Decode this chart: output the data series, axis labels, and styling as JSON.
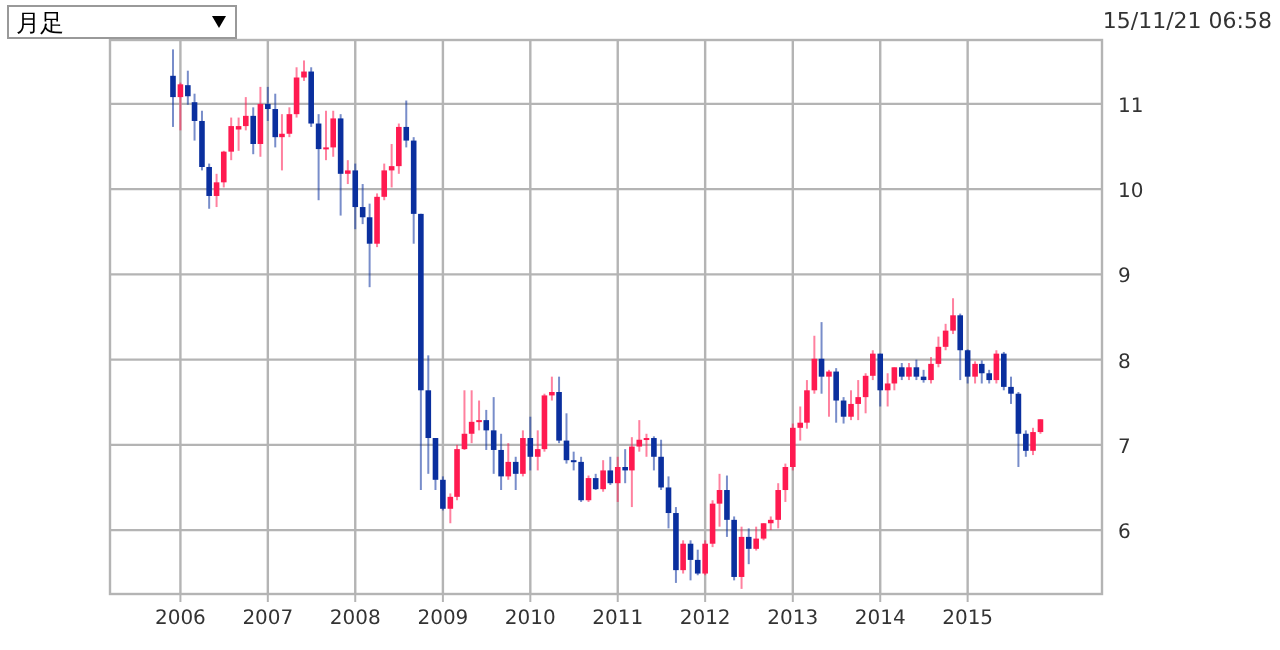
{
  "chart_data": {
    "type": "candlestick",
    "x": [
      "2005-12",
      "2006-01",
      "2006-02",
      "2006-03",
      "2006-04",
      "2006-05",
      "2006-06",
      "2006-07",
      "2006-08",
      "2006-09",
      "2006-10",
      "2006-11",
      "2006-12",
      "2007-01",
      "2007-02",
      "2007-03",
      "2007-04",
      "2007-05",
      "2007-06",
      "2007-07",
      "2007-08",
      "2007-09",
      "2007-10",
      "2007-11",
      "2007-12",
      "2008-01",
      "2008-02",
      "2008-03",
      "2008-04",
      "2008-05",
      "2008-06",
      "2008-07",
      "2008-08",
      "2008-09",
      "2008-10",
      "2008-11",
      "2008-12",
      "2009-01",
      "2009-02",
      "2009-03",
      "2009-04",
      "2009-05",
      "2009-06",
      "2009-07",
      "2009-08",
      "2009-09",
      "2009-10",
      "2009-11",
      "2009-12",
      "2010-01",
      "2010-02",
      "2010-03",
      "2010-04",
      "2010-05",
      "2010-06",
      "2010-07",
      "2010-08",
      "2010-09",
      "2010-10",
      "2010-11",
      "2010-12",
      "2011-01",
      "2011-02",
      "2011-03",
      "2011-04",
      "2011-05",
      "2011-06",
      "2011-07",
      "2011-08",
      "2011-09",
      "2011-10",
      "2011-11",
      "2011-12",
      "2012-01",
      "2012-02",
      "2012-03",
      "2012-04",
      "2012-05",
      "2012-06",
      "2012-07",
      "2012-08",
      "2012-09",
      "2012-10",
      "2012-11",
      "2012-12",
      "2013-01",
      "2013-02",
      "2013-03",
      "2013-04",
      "2013-05",
      "2013-06",
      "2013-07",
      "2013-08",
      "2013-09",
      "2013-10",
      "2013-11",
      "2013-12",
      "2014-01",
      "2014-02",
      "2014-03",
      "2014-04",
      "2014-05",
      "2014-06",
      "2014-07",
      "2014-08",
      "2014-09",
      "2014-10",
      "2014-11",
      "2014-12",
      "2015-01",
      "2015-02",
      "2015-03",
      "2015-04",
      "2015-05",
      "2015-06",
      "2015-07",
      "2015-08",
      "2015-09",
      "2015-10",
      "2015-11"
    ],
    "ohlc": [
      [
        11.33,
        11.64,
        10.73,
        11.08
      ],
      [
        11.08,
        11.25,
        10.69,
        11.23
      ],
      [
        11.22,
        11.39,
        10.99,
        11.09
      ],
      [
        11.02,
        11.12,
        10.57,
        10.8
      ],
      [
        10.8,
        10.92,
        10.22,
        10.26
      ],
      [
        10.26,
        10.3,
        9.77,
        9.92
      ],
      [
        9.92,
        10.18,
        9.79,
        10.08
      ],
      [
        10.08,
        10.45,
        10.02,
        10.44
      ],
      [
        10.44,
        10.84,
        10.34,
        10.74
      ],
      [
        10.7,
        10.84,
        10.45,
        10.74
      ],
      [
        10.74,
        11.08,
        10.69,
        10.86
      ],
      [
        10.86,
        10.96,
        10.41,
        10.53
      ],
      [
        10.53,
        11.2,
        10.38,
        11.0
      ],
      [
        11.0,
        11.2,
        10.8,
        10.94
      ],
      [
        10.94,
        11.12,
        10.49,
        10.61
      ],
      [
        10.61,
        10.88,
        10.22,
        10.65
      ],
      [
        10.65,
        10.96,
        10.61,
        10.88
      ],
      [
        10.88,
        11.43,
        10.84,
        11.31
      ],
      [
        11.31,
        11.51,
        11.27,
        11.38
      ],
      [
        11.38,
        11.43,
        10.73,
        10.77
      ],
      [
        10.77,
        10.88,
        9.87,
        10.47
      ],
      [
        10.47,
        10.92,
        10.34,
        10.49
      ],
      [
        10.49,
        10.92,
        10.38,
        10.83
      ],
      [
        10.83,
        10.88,
        9.69,
        10.18
      ],
      [
        10.18,
        10.34,
        10.06,
        10.22
      ],
      [
        10.22,
        10.3,
        9.53,
        9.79
      ],
      [
        9.79,
        10.06,
        9.59,
        9.67
      ],
      [
        9.67,
        9.83,
        8.85,
        9.36
      ],
      [
        9.36,
        9.95,
        9.32,
        9.91
      ],
      [
        9.91,
        10.3,
        9.87,
        10.22
      ],
      [
        10.22,
        10.53,
        10.02,
        10.27
      ],
      [
        10.27,
        10.77,
        10.18,
        10.73
      ],
      [
        10.73,
        11.04,
        10.49,
        10.57
      ],
      [
        10.57,
        10.61,
        9.36,
        9.71
      ],
      [
        9.71,
        9.71,
        6.47,
        7.64
      ],
      [
        7.64,
        8.05,
        6.66,
        7.08
      ],
      [
        7.08,
        7.08,
        6.47,
        6.59
      ],
      [
        6.59,
        6.63,
        6.23,
        6.25
      ],
      [
        6.25,
        6.43,
        6.08,
        6.39
      ],
      [
        6.39,
        7.0,
        6.35,
        6.95
      ],
      [
        6.95,
        7.64,
        6.94,
        7.13
      ],
      [
        7.13,
        7.64,
        7.02,
        7.27
      ],
      [
        7.27,
        7.52,
        7.17,
        7.29
      ],
      [
        7.29,
        7.41,
        6.94,
        7.17
      ],
      [
        7.17,
        7.56,
        6.66,
        6.94
      ],
      [
        6.94,
        7.13,
        6.47,
        6.63
      ],
      [
        6.63,
        7.02,
        6.59,
        6.8
      ],
      [
        6.8,
        6.86,
        6.47,
        6.66
      ],
      [
        6.66,
        7.17,
        6.63,
        7.08
      ],
      [
        7.08,
        7.33,
        6.7,
        6.86
      ],
      [
        6.86,
        7.17,
        6.7,
        6.95
      ],
      [
        6.95,
        7.6,
        6.92,
        7.58
      ],
      [
        7.58,
        7.8,
        7.52,
        7.62
      ],
      [
        7.62,
        7.8,
        7.02,
        7.05
      ],
      [
        7.05,
        7.37,
        6.78,
        6.82
      ],
      [
        6.82,
        6.92,
        6.7,
        6.8
      ],
      [
        6.8,
        6.86,
        6.33,
        6.35
      ],
      [
        6.35,
        6.64,
        6.33,
        6.61
      ],
      [
        6.61,
        6.66,
        6.47,
        6.48
      ],
      [
        6.48,
        6.82,
        6.45,
        6.7
      ],
      [
        6.7,
        6.86,
        6.53,
        6.55
      ],
      [
        6.55,
        6.86,
        6.33,
        6.74
      ],
      [
        6.74,
        6.95,
        6.55,
        6.7
      ],
      [
        6.7,
        7.09,
        6.27,
        6.98
      ],
      [
        6.98,
        7.29,
        6.92,
        7.06
      ],
      [
        7.06,
        7.13,
        6.86,
        7.08
      ],
      [
        7.08,
        7.1,
        6.7,
        6.86
      ],
      [
        6.86,
        7.06,
        6.47,
        6.5
      ],
      [
        6.5,
        6.63,
        6.02,
        6.2
      ],
      [
        6.2,
        6.27,
        5.38,
        5.53
      ],
      [
        5.53,
        5.88,
        5.49,
        5.84
      ],
      [
        5.84,
        5.88,
        5.41,
        5.65
      ],
      [
        5.65,
        5.77,
        5.47,
        5.49
      ],
      [
        5.49,
        5.88,
        5.47,
        5.84
      ],
      [
        5.84,
        6.35,
        5.8,
        6.31
      ],
      [
        6.31,
        6.66,
        6.04,
        6.47
      ],
      [
        6.47,
        6.64,
        5.92,
        6.12
      ],
      [
        6.12,
        6.16,
        5.41,
        5.45
      ],
      [
        5.45,
        6.04,
        5.31,
        5.92
      ],
      [
        5.92,
        6.02,
        5.6,
        5.78
      ],
      [
        5.78,
        6.04,
        5.76,
        5.9
      ],
      [
        5.9,
        6.08,
        5.88,
        6.08
      ],
      [
        6.08,
        6.16,
        6.0,
        6.12
      ],
      [
        6.12,
        6.55,
        6.02,
        6.47
      ],
      [
        6.47,
        6.78,
        6.33,
        6.74
      ],
      [
        6.74,
        7.25,
        6.7,
        7.2
      ],
      [
        7.2,
        7.45,
        7.05,
        7.26
      ],
      [
        7.26,
        7.76,
        7.19,
        7.64
      ],
      [
        7.64,
        8.28,
        7.6,
        8.01
      ],
      [
        8.01,
        8.44,
        7.6,
        7.8
      ],
      [
        7.8,
        7.88,
        7.33,
        7.86
      ],
      [
        7.86,
        7.9,
        7.26,
        7.52
      ],
      [
        7.52,
        7.56,
        7.25,
        7.33
      ],
      [
        7.33,
        7.64,
        7.29,
        7.48
      ],
      [
        7.48,
        7.76,
        7.29,
        7.56
      ],
      [
        7.56,
        7.84,
        7.37,
        7.81
      ],
      [
        7.81,
        8.11,
        7.76,
        8.07
      ],
      [
        8.07,
        8.07,
        7.45,
        7.64
      ],
      [
        7.64,
        7.84,
        7.45,
        7.72
      ],
      [
        7.72,
        7.91,
        7.64,
        7.91
      ],
      [
        7.91,
        7.96,
        7.76,
        7.8
      ],
      [
        7.8,
        7.96,
        7.76,
        7.91
      ],
      [
        7.91,
        8.0,
        7.76,
        7.8
      ],
      [
        7.8,
        7.88,
        7.73,
        7.76
      ],
      [
        7.76,
        8.03,
        7.72,
        7.95
      ],
      [
        7.95,
        8.27,
        7.91,
        8.15
      ],
      [
        8.15,
        8.42,
        8.11,
        8.34
      ],
      [
        8.34,
        8.72,
        8.3,
        8.52
      ],
      [
        8.52,
        8.54,
        7.76,
        8.11
      ],
      [
        8.11,
        8.12,
        7.72,
        7.8
      ],
      [
        7.8,
        7.98,
        7.72,
        7.95
      ],
      [
        7.95,
        7.99,
        7.72,
        7.84
      ],
      [
        7.84,
        7.88,
        7.72,
        7.76
      ],
      [
        7.76,
        8.11,
        7.72,
        8.07
      ],
      [
        8.07,
        8.09,
        7.64,
        7.68
      ],
      [
        7.68,
        7.8,
        7.48,
        7.6
      ],
      [
        7.6,
        7.62,
        6.74,
        7.13
      ],
      [
        7.13,
        7.17,
        6.86,
        6.93
      ],
      [
        6.93,
        7.2,
        6.88,
        7.15
      ],
      [
        7.15,
        7.3,
        7.13,
        7.3
      ]
    ],
    "colors": [
      "#0a2f9e",
      "#ff1a50",
      "#0a2f9e",
      "#0a2f9e",
      "#0a2f9e",
      "#0a2f9e",
      "#ff1a50",
      "#ff1a50",
      "#ff1a50",
      "#ff1a50",
      "#ff1a50",
      "#0a2f9e",
      "#ff1a50",
      "#0a2f9e",
      "#0a2f9e",
      "#ff1a50",
      "#ff1a50",
      "#ff1a50",
      "#ff1a50",
      "#0a2f9e",
      "#0a2f9e",
      "#ff1a50",
      "#ff1a50",
      "#0a2f9e",
      "#ff1a50",
      "#0a2f9e",
      "#0a2f9e",
      "#0a2f9e",
      "#ff1a50",
      "#ff1a50",
      "#ff1a50",
      "#ff1a50",
      "#0a2f9e",
      "#0a2f9e",
      "#0a2f9e",
      "#0a2f9e",
      "#0a2f9e",
      "#0a2f9e",
      "#ff1a50",
      "#ff1a50",
      "#ff1a50",
      "#ff1a50",
      "#ff1a50",
      "#0a2f9e",
      "#0a2f9e",
      "#0a2f9e",
      "#ff1a50",
      "#0a2f9e",
      "#ff1a50",
      "#0a2f9e",
      "#ff1a50",
      "#ff1a50",
      "#ff1a50",
      "#0a2f9e",
      "#0a2f9e",
      "#0a2f9e",
      "#0a2f9e",
      "#ff1a50",
      "#0a2f9e",
      "#ff1a50",
      "#0a2f9e",
      "#ff1a50",
      "#0a2f9e",
      "#ff1a50",
      "#ff1a50",
      "#ff1a50",
      "#0a2f9e",
      "#0a2f9e",
      "#0a2f9e",
      "#0a2f9e",
      "#ff1a50",
      "#0a2f9e",
      "#0a2f9e",
      "#ff1a50",
      "#ff1a50",
      "#ff1a50",
      "#0a2f9e",
      "#0a2f9e",
      "#ff1a50",
      "#0a2f9e",
      "#ff1a50",
      "#ff1a50",
      "#ff1a50",
      "#ff1a50",
      "#ff1a50",
      "#ff1a50",
      "#ff1a50",
      "#ff1a50",
      "#ff1a50",
      "#0a2f9e",
      "#ff1a50",
      "#0a2f9e",
      "#0a2f9e",
      "#ff1a50",
      "#ff1a50",
      "#ff1a50",
      "#ff1a50",
      "#0a2f9e",
      "#ff1a50",
      "#ff1a50",
      "#0a2f9e",
      "#ff1a50",
      "#0a2f9e",
      "#0a2f9e",
      "#ff1a50",
      "#ff1a50",
      "#ff1a50",
      "#ff1a50",
      "#0a2f9e",
      "#0a2f9e",
      "#ff1a50",
      "#0a2f9e",
      "#0a2f9e",
      "#ff1a50",
      "#0a2f9e",
      "#0a2f9e",
      "#0a2f9e",
      "#0a2f9e",
      "#ff1a50",
      "#ff1a50"
    ],
    "xlim": [
      "2005-03-13",
      "2016-07-15"
    ],
    "xticks": [
      {
        "value": "2006",
        "label": "2006"
      },
      {
        "value": "2007",
        "label": "2007"
      },
      {
        "value": "2008",
        "label": "2008"
      },
      {
        "value": "2009",
        "label": "2009"
      },
      {
        "value": "2010",
        "label": "2010"
      },
      {
        "value": "2011",
        "label": "2011"
      },
      {
        "value": "2012",
        "label": "2012"
      },
      {
        "value": "2013",
        "label": "2013"
      },
      {
        "value": "2014",
        "label": "2014"
      },
      {
        "value": "2015",
        "label": "2015"
      }
    ],
    "ylim": [
      5.25,
      11.75
    ],
    "yticks": [
      6,
      7,
      8,
      9,
      10,
      11
    ],
    "grid": true,
    "annotations": [
      "月足",
      "15/11/21 06:58"
    ]
  }
}
